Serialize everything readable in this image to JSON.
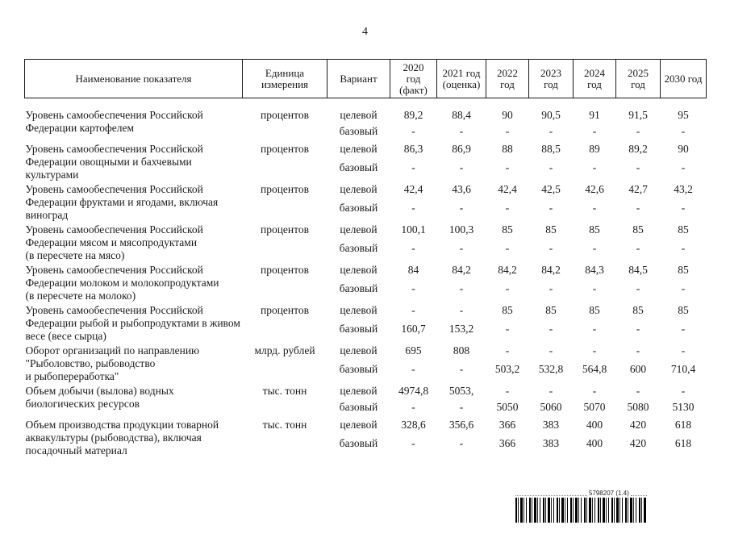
{
  "page": {
    "number": "4"
  },
  "table": {
    "headers": [
      "Наименование показателя",
      "Единица\nизмерения",
      "Вариант",
      "2020\nгод\n(факт)",
      "2021 год\n(оценка)",
      "2022\nгод",
      "2023\nгод",
      "2024\nгод",
      "2025\nгод",
      "2030 год"
    ],
    "rows": [
      {
        "name": "Уровень самообеспечения Российской\nФедерации картофелем",
        "unit": "процентов",
        "variants": [
          {
            "label": "целевой",
            "values": [
              "89,2",
              "88,4",
              "90",
              "90,5",
              "91",
              "91,5",
              "95"
            ]
          },
          {
            "label": "базовый",
            "values": [
              "-",
              "-",
              "-",
              "-",
              "-",
              "-",
              "-"
            ]
          }
        ]
      },
      {
        "name": "Уровень самообеспечения Российской\nФедерации овощными и бахчевыми\nкультурами",
        "unit": "процентов",
        "variants": [
          {
            "label": "целевой",
            "values": [
              "86,3",
              "86,9",
              "88",
              "88,5",
              "89",
              "89,2",
              "90"
            ]
          },
          {
            "label": "базовый",
            "values": [
              "-",
              "-",
              "-",
              "-",
              "-",
              "-",
              "-"
            ]
          }
        ]
      },
      {
        "name": "Уровень самообеспечения Российской\nФедерации фруктами и ягодами, включая\nвиноград",
        "unit": "процентов",
        "variants": [
          {
            "label": "целевой",
            "values": [
              "42,4",
              "43,6",
              "42,4",
              "42,5",
              "42,6",
              "42,7",
              "43,2"
            ]
          },
          {
            "label": "базовый",
            "values": [
              "-",
              "-",
              "-",
              "-",
              "-",
              "-",
              "-"
            ]
          }
        ]
      },
      {
        "name": "Уровень самообеспечения Российской\nФедерации мясом и мясопродуктами\n(в пересчете на мясо)",
        "unit": "процентов",
        "variants": [
          {
            "label": "целевой",
            "values": [
              "100,1",
              "100,3",
              "85",
              "85",
              "85",
              "85",
              "85"
            ]
          },
          {
            "label": "базовый",
            "values": [
              "-",
              "-",
              "-",
              "-",
              "-",
              "-",
              "-"
            ]
          }
        ]
      },
      {
        "name": "Уровень самообеспечения Российской\nФедерации молоком и молокопродуктами\n(в пересчете на молоко)",
        "unit": "процентов",
        "variants": [
          {
            "label": "целевой",
            "values": [
              "84",
              "84,2",
              "84,2",
              "84,2",
              "84,3",
              "84,5",
              "85"
            ]
          },
          {
            "label": "базовый",
            "values": [
              "-",
              "-",
              "-",
              "-",
              "-",
              "-",
              "-"
            ]
          }
        ]
      },
      {
        "name": "Уровень самообеспечения Российской\nФедерации рыбой и рыбопродуктами в живом\nвесе (весе сырца)",
        "unit": "процентов",
        "variants": [
          {
            "label": "целевой",
            "values": [
              "-",
              "-",
              "85",
              "85",
              "85",
              "85",
              "85"
            ]
          },
          {
            "label": "базовый",
            "values": [
              "160,7",
              "153,2",
              "-",
              "-",
              "-",
              "-",
              "-"
            ]
          }
        ]
      },
      {
        "name": "Оборот организаций по направлению\n\"Рыболовство, рыбоводство\nи рыбопереработка\"",
        "unit": "млрд. рублей",
        "variants": [
          {
            "label": "целевой",
            "values": [
              "695",
              "808",
              "-",
              "-",
              "-",
              "-",
              "-"
            ]
          },
          {
            "label": "базовый",
            "values": [
              "-",
              "-",
              "503,2",
              "532,8",
              "564,8",
              "600",
              "710,4"
            ]
          }
        ]
      },
      {
        "name": "Объем добычи (вылова) водных\nбиологических ресурсов",
        "unit": "тыс. тонн",
        "variants": [
          {
            "label": "целевой",
            "values": [
              "4974,8",
              "5053,",
              "-",
              "-",
              "-",
              "-",
              "-"
            ]
          },
          {
            "label": "базовый",
            "values": [
              "-",
              "-",
              "5050",
              "5060",
              "5070",
              "5080",
              "5130"
            ]
          }
        ]
      },
      {
        "name": "Объем производства продукции товарной\nаквакультуры (рыбоводства), включая\nпосадочный материал",
        "unit": "тыс. тонн",
        "variants": [
          {
            "label": "целевой",
            "values": [
              "328,6",
              "356,6",
              "366",
              "383",
              "400",
              "420",
              "618"
            ]
          },
          {
            "label": "базовый",
            "values": [
              "-",
              "-",
              "366",
              "383",
              "400",
              "420",
              "618"
            ]
          }
        ]
      }
    ]
  },
  "barcode": {
    "label": "5798207 (1.4)"
  }
}
